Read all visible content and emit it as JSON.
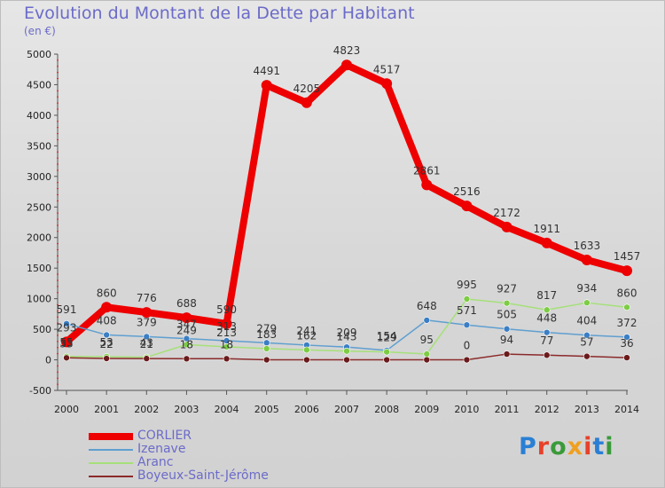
{
  "title": "Evolution du Montant de la Dette par Habitant",
  "subtitle": "(en €)",
  "logo": {
    "text": "Proxiti",
    "colors": [
      "#2a7fd4",
      "#e8402a",
      "#3a9a3a",
      "#f0a020",
      "#e8402a",
      "#2a7fd4",
      "#3a9a3a"
    ]
  },
  "chart_data": {
    "type": "line",
    "title": "Evolution du Montant de la Dette par Habitant",
    "subtitle": "(en €)",
    "x": [
      "2000",
      "2001",
      "2002",
      "2003",
      "2004",
      "2005",
      "2006",
      "2007",
      "2008",
      "2009",
      "2010",
      "2011",
      "2012",
      "2013",
      "2014"
    ],
    "ylim": [
      -500,
      5000
    ],
    "yticks": [
      -500,
      0,
      500,
      1000,
      1500,
      2000,
      2500,
      3000,
      3500,
      4000,
      4500,
      5000
    ],
    "grid": false,
    "legend_position": "bottom-left",
    "series": [
      {
        "name": "CORLIER",
        "color": "#ee0000",
        "marker": "#ee0000",
        "width": 8,
        "values": [
          293,
          860,
          776,
          688,
          590,
          4491,
          4205,
          4823,
          4517,
          2861,
          2516,
          2172,
          1911,
          1633,
          1457
        ]
      },
      {
        "name": "Izenave",
        "color": "#5f9fd0",
        "marker": "#3a7ec4",
        "width": 1.5,
        "values": [
          591,
          408,
          379,
          347,
          313,
          279,
          241,
          209,
          154,
          648,
          571,
          505,
          448,
          404,
          372
        ]
      },
      {
        "name": "Aranc",
        "color": "#a6e07a",
        "marker": "#7ccc44",
        "width": 1.5,
        "values": [
          55,
          53,
          43,
          249,
          213,
          183,
          162,
          143,
          129,
          95,
          995,
          927,
          817,
          934,
          860
        ]
      },
      {
        "name": "Boyeux-Saint-Jérôme",
        "color": "#8b2a2a",
        "marker": "#6a1a1a",
        "width": 1.5,
        "values": [
          33,
          22,
          21,
          18,
          18,
          0,
          0,
          0,
          0,
          0,
          0,
          94,
          77,
          57,
          36
        ]
      }
    ],
    "labels": [
      {
        "series": 0,
        "values": [
          "293",
          "860",
          "776",
          "688",
          "590",
          "4491",
          "4205",
          "4823",
          "4517",
          "2861",
          "2516",
          "2172",
          "1911",
          "1633",
          "1457"
        ]
      },
      {
        "series": 1,
        "values": [
          "591",
          "408",
          "379",
          "347",
          "313",
          "279",
          "241",
          "209",
          "154",
          "648",
          "571",
          "505",
          "448",
          "404",
          "372"
        ]
      },
      {
        "series": 2,
        "values": [
          "55",
          "53",
          "43",
          "249",
          "213",
          "183",
          "162",
          "143",
          "129",
          "95",
          "995",
          "927",
          "817",
          "934",
          "860"
        ]
      },
      {
        "series": 3,
        "values": [
          "33",
          "22",
          "21",
          "18",
          "18",
          "",
          "",
          "",
          "",
          "",
          "0",
          "94",
          "77",
          "57",
          "36"
        ]
      }
    ]
  }
}
